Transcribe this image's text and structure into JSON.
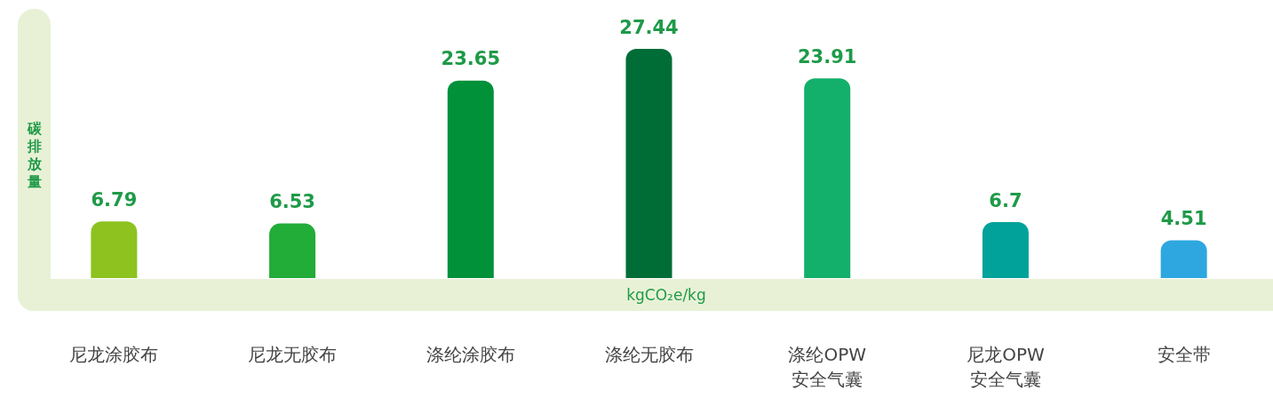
{
  "chart_data": {
    "type": "bar",
    "ylabel": "碳排放量",
    "xlabel": "kgCO₂e/kg",
    "categories": [
      "尼龙涂胶布",
      "尼龙无胶布",
      "涤纶涂胶布",
      "涤纶无胶布",
      "涤纶OPW安全气囊",
      "尼龙OPW安全气囊",
      "安全带"
    ],
    "values": [
      6.79,
      6.53,
      23.65,
      27.44,
      23.91,
      6.7,
      4.51
    ],
    "colors": [
      "#8dc21f",
      "#22ac38",
      "#009139",
      "#006d37",
      "#13b06b",
      "#00a29a",
      "#2ea7e0"
    ],
    "data_labels": true
  }
}
